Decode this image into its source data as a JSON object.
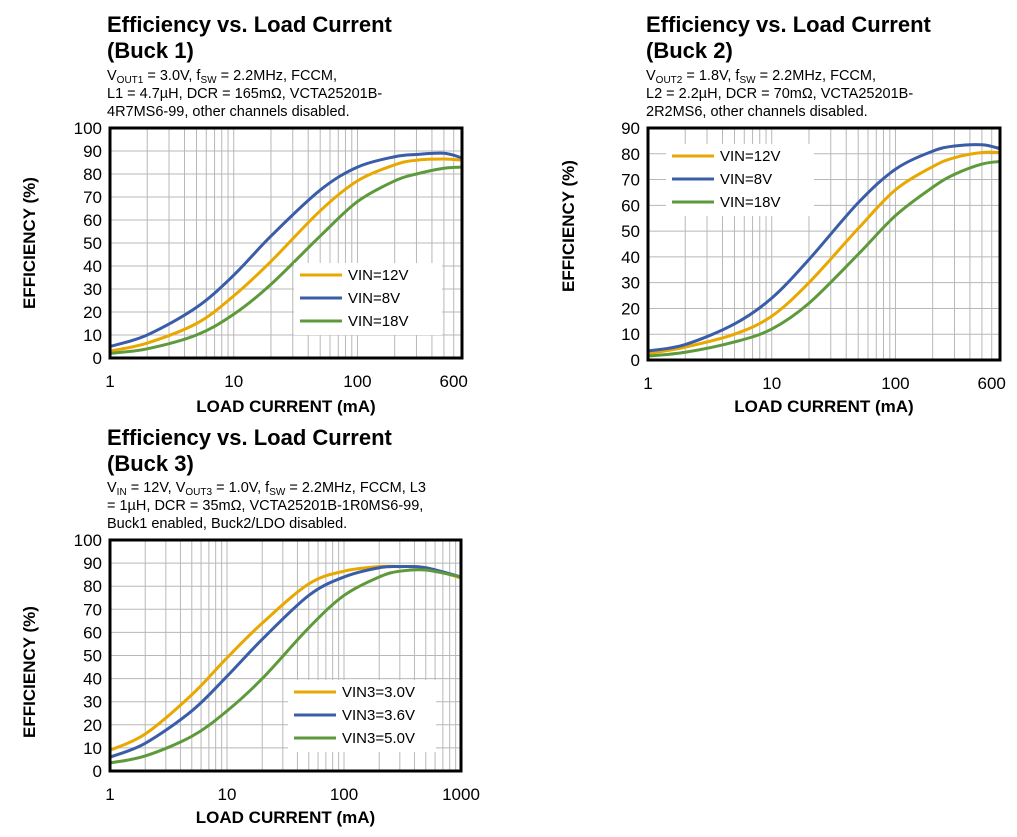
{
  "panels": [
    {
      "title_line1": "Efficiency vs. Load Current",
      "title_line2": "(Buck 1)",
      "conditions": [
        {
          "parts": [
            {
              "t": "V"
            },
            {
              "t": "OUT1",
              "sub": true
            },
            {
              "t": " = 3.0V, f"
            },
            {
              "t": "SW",
              "sub": true
            },
            {
              "t": " = 2.2MHz, FCCM,"
            }
          ]
        },
        {
          "parts": [
            {
              "t": "L1 = 4.7µH, DCR = 165mΩ, VCTA25201B-"
            }
          ]
        },
        {
          "parts": [
            {
              "t": "4R7MS6-99, other channels disabled."
            }
          ]
        }
      ]
    },
    {
      "title_line1": "Efficiency vs. Load Current",
      "title_line2": "(Buck 2)",
      "conditions": [
        {
          "parts": [
            {
              "t": "V"
            },
            {
              "t": "OUT2",
              "sub": true
            },
            {
              "t": " = 1.8V, f"
            },
            {
              "t": "SW",
              "sub": true
            },
            {
              "t": " = 2.2MHz, FCCM,"
            }
          ]
        },
        {
          "parts": [
            {
              "t": "L2 = 2.2µH, DCR = 70mΩ, VCTA25201B-"
            }
          ]
        },
        {
          "parts": [
            {
              "t": "2R2MS6, other channels disabled."
            }
          ]
        }
      ]
    },
    {
      "title_line1": "Efficiency vs. Load Current",
      "title_line2": "(Buck 3)",
      "conditions": [
        {
          "parts": [
            {
              "t": "V"
            },
            {
              "t": "IN",
              "sub": true
            },
            {
              "t": " = 12V, V"
            },
            {
              "t": "OUT3",
              "sub": true
            },
            {
              "t": " = 1.0V, f"
            },
            {
              "t": "SW",
              "sub": true
            },
            {
              "t": " = 2.2MHz, FCCM, L3"
            }
          ]
        },
        {
          "parts": [
            {
              "t": "= 1µH, DCR = 35mΩ, VCTA25201B-1R0MS6-99,"
            }
          ]
        },
        {
          "parts": [
            {
              "t": "Buck1 enabled, Buck2/LDO disabled."
            }
          ]
        }
      ]
    }
  ],
  "colors": {
    "gold": "#E8A800",
    "blue": "#3A5DA8",
    "green": "#5E9A3C",
    "grid": "#b8b8b8",
    "frame": "#000000"
  },
  "chart_data": [
    {
      "type": "line",
      "xlabel": "LOAD CURRENT (mA)",
      "ylabel": "EFFICIENCY (%)",
      "xscale": "log",
      "xlim": [
        1,
        700
      ],
      "ylim": [
        0,
        100
      ],
      "xticks": [
        1,
        10,
        100,
        600
      ],
      "xtick_labels": [
        "1",
        "10",
        "100",
        "600"
      ],
      "yticks": [
        0,
        10,
        20,
        30,
        40,
        50,
        60,
        70,
        80,
        90,
        100
      ],
      "legend_position": "bottom-right",
      "series": [
        {
          "name": "VIN=12V",
          "color": "gold",
          "x": [
            1,
            2,
            5,
            10,
            20,
            50,
            100,
            200,
            300,
            500,
            700
          ],
          "y": [
            3,
            6.5,
            15,
            27,
            42,
            64,
            77,
            84,
            86,
            86.5,
            86
          ]
        },
        {
          "name": "VIN=8V",
          "color": "blue",
          "x": [
            1,
            2,
            5,
            10,
            20,
            50,
            100,
            200,
            300,
            500,
            700
          ],
          "y": [
            5,
            10,
            22,
            36,
            53,
            73,
            83,
            87.5,
            88.5,
            89,
            87
          ]
        },
        {
          "name": "VIN=18V",
          "color": "green",
          "x": [
            1,
            2,
            5,
            10,
            20,
            50,
            100,
            200,
            300,
            500,
            700
          ],
          "y": [
            2,
            4,
            10,
            19,
            32,
            53,
            68,
            77,
            80,
            82.5,
            83
          ]
        }
      ]
    },
    {
      "type": "line",
      "xlabel": "LOAD CURRENT (mA)",
      "ylabel": "EFFICIENCY (%)",
      "xscale": "log",
      "xlim": [
        1,
        700
      ],
      "ylim": [
        0,
        90
      ],
      "xticks": [
        1,
        10,
        100,
        600
      ],
      "xtick_labels": [
        "1",
        "10",
        "100",
        "600"
      ],
      "yticks": [
        0,
        10,
        20,
        30,
        40,
        50,
        60,
        70,
        80,
        90
      ],
      "legend_position": "top-left",
      "series": [
        {
          "name": "VIN=12V",
          "color": "gold",
          "x": [
            1,
            2,
            5,
            10,
            20,
            50,
            100,
            200,
            300,
            500,
            700
          ],
          "y": [
            2.5,
            5,
            10,
            17,
            30,
            51,
            66,
            75,
            78.5,
            80.5,
            80.5
          ]
        },
        {
          "name": "VIN=8V",
          "color": "blue",
          "x": [
            1,
            2,
            5,
            10,
            20,
            50,
            100,
            200,
            300,
            500,
            700
          ],
          "y": [
            3.5,
            6,
            14,
            24,
            39,
            61,
            74,
            81,
            83,
            83.5,
            82
          ]
        },
        {
          "name": "VIN=18V",
          "color": "green",
          "x": [
            1,
            2,
            5,
            10,
            20,
            50,
            100,
            200,
            300,
            500,
            700
          ],
          "y": [
            1.5,
            3,
            7,
            12,
            22,
            41,
            56,
            67,
            72,
            76,
            77
          ]
        }
      ]
    },
    {
      "type": "line",
      "xlabel": "LOAD CURRENT (mA)",
      "ylabel": "EFFICIENCY (%)",
      "xscale": "log",
      "xlim": [
        1,
        1000
      ],
      "ylim": [
        0,
        100
      ],
      "xticks": [
        1,
        10,
        100,
        1000
      ],
      "xtick_labels": [
        "1",
        "10",
        "100",
        "1000"
      ],
      "yticks": [
        0,
        10,
        20,
        30,
        40,
        50,
        60,
        70,
        80,
        90,
        100
      ],
      "legend_position": "bottom-right",
      "series": [
        {
          "name": "VIN3=3.0V",
          "color": "gold",
          "x": [
            1,
            2,
            5,
            10,
            20,
            50,
            100,
            200,
            300,
            500,
            1000
          ],
          "y": [
            9,
            16,
            33,
            49,
            64,
            81,
            86.5,
            88.5,
            88.5,
            88,
            83.5
          ]
        },
        {
          "name": "VIN3=3.6V",
          "color": "blue",
          "x": [
            1,
            2,
            5,
            10,
            20,
            50,
            100,
            200,
            300,
            500,
            1000
          ],
          "y": [
            6,
            12,
            26,
            41,
            57,
            76,
            84,
            88,
            88.5,
            88,
            84
          ]
        },
        {
          "name": "VIN3=5.0V",
          "color": "green",
          "x": [
            1,
            2,
            5,
            10,
            20,
            50,
            100,
            200,
            300,
            500,
            1000
          ],
          "y": [
            3.5,
            6.5,
            15,
            26,
            40,
            62,
            76,
            84,
            86.5,
            87,
            84
          ]
        }
      ]
    }
  ]
}
